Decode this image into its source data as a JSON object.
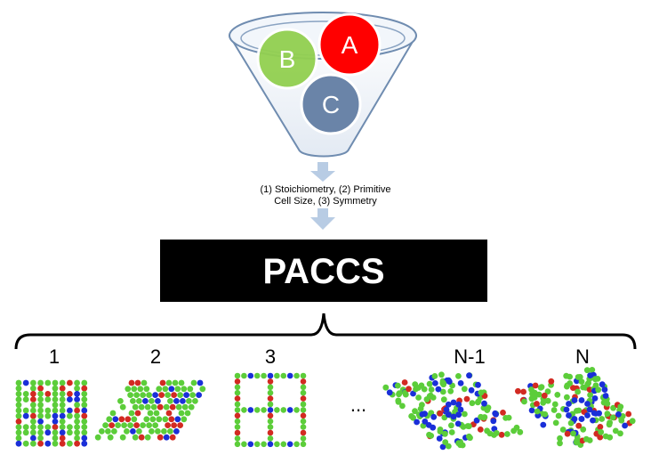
{
  "funnel": {
    "elements": [
      {
        "label": "A",
        "color": "#ff0000"
      },
      {
        "label": "B",
        "color": "#92d050"
      },
      {
        "label": "C",
        "color": "#6a84a8"
      }
    ]
  },
  "inputs": {
    "line1": "(1) Stoichiometry, (2) Primitive",
    "line2": "Cell Size, (3) Symmetry"
  },
  "algorithm": {
    "name": "PACCS"
  },
  "outputs": {
    "labels": [
      "1",
      "2",
      "3",
      "N-1",
      "N"
    ],
    "ellipsis": "..."
  },
  "colors": {
    "atom_green": "#5ccd3a",
    "atom_blue": "#1a2fd8",
    "atom_red": "#d22a22",
    "arrow": "#b8cce4",
    "box": "#000000"
  }
}
